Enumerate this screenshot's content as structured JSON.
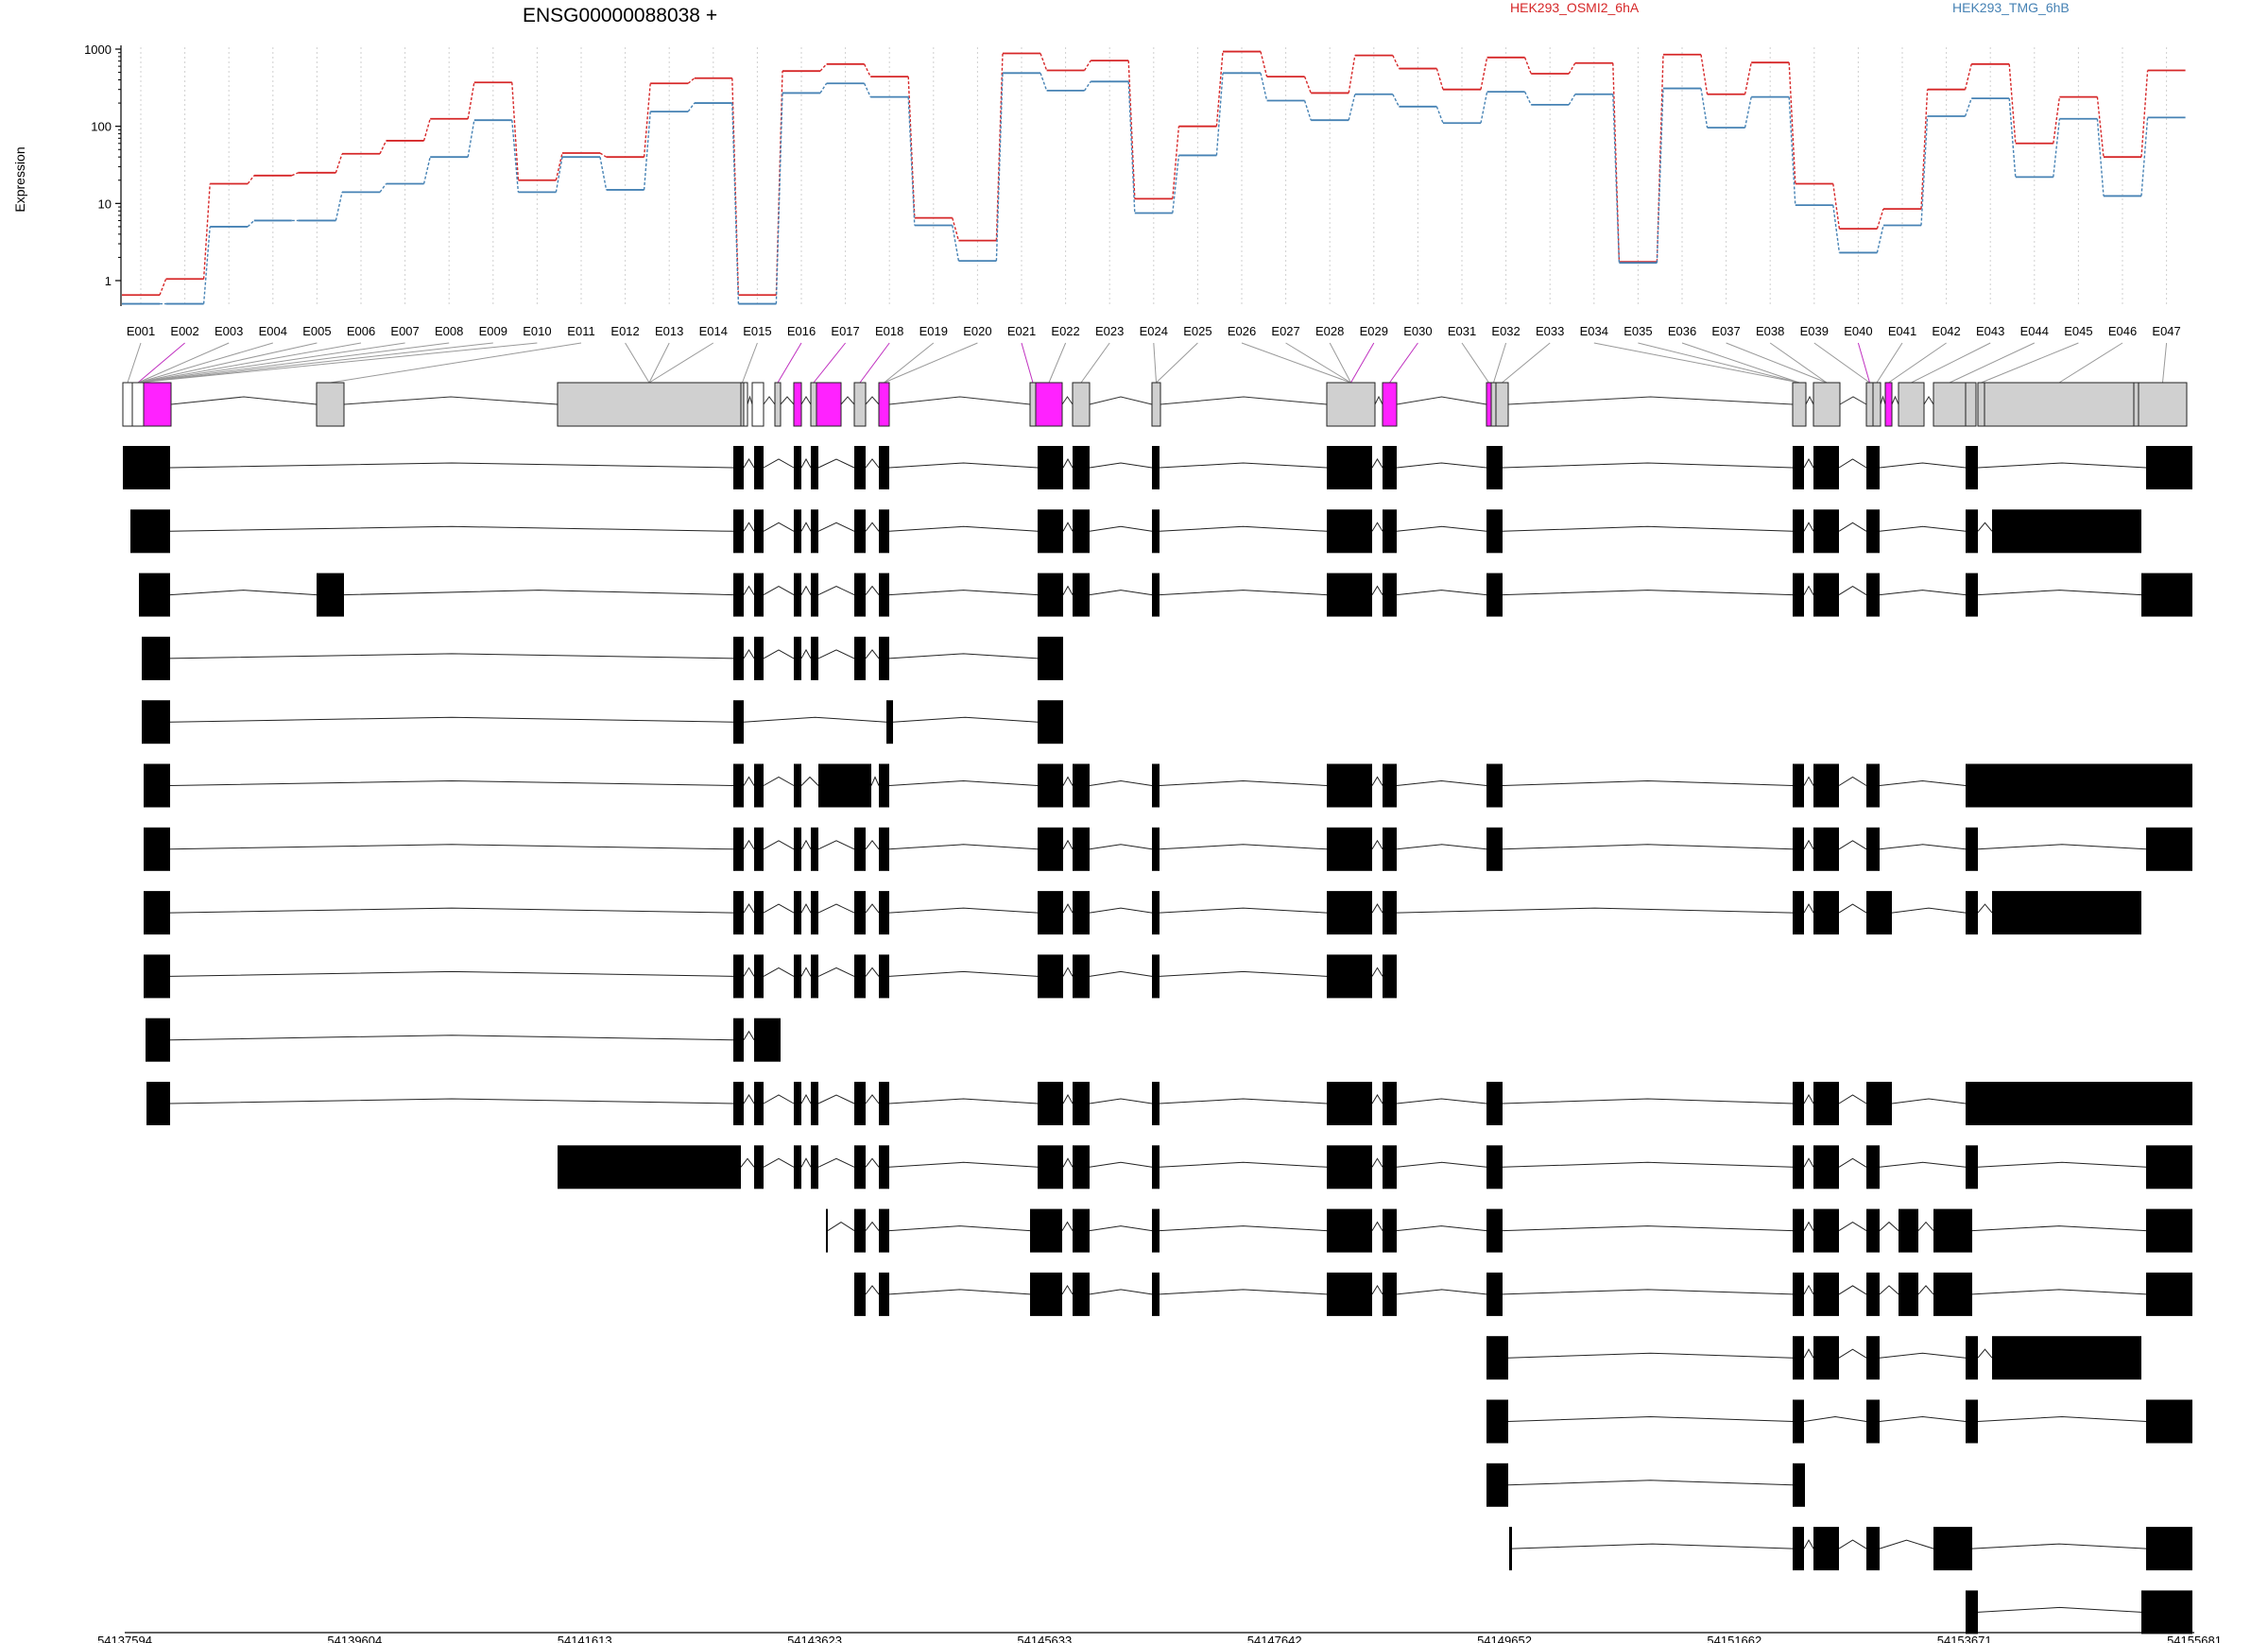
{
  "chart_data": {
    "type": "line",
    "title": "ENSG00000088038 +",
    "ylabel": "Expression",
    "y_scale": "log",
    "ylim": [
      0.5,
      1000
    ],
    "yticks": [
      "1000",
      "100",
      "10",
      "1"
    ],
    "grid": "vertical dotted lines at exon centers",
    "legend_position": "top",
    "categories": [
      "E001",
      "E002",
      "E003",
      "E004",
      "E005",
      "E006",
      "E007",
      "E008",
      "E009",
      "E010",
      "E011",
      "E012",
      "E013",
      "E014",
      "E015",
      "E016",
      "E017",
      "E018",
      "E019",
      "E020",
      "E021",
      "E022",
      "E023",
      "E024",
      "E025",
      "E026",
      "E027",
      "E028",
      "E029",
      "E030",
      "E031",
      "E032",
      "E033",
      "E034",
      "E035",
      "E036",
      "E037",
      "E038",
      "E039",
      "E040",
      "E041",
      "E042",
      "E043",
      "E044",
      "E045",
      "E046",
      "E047"
    ],
    "series": [
      {
        "name": "HEK293_OSMI2_6hA",
        "color": "#d62728",
        "values": [
          0.65,
          1.05,
          18,
          23,
          25,
          44,
          65,
          125,
          370,
          20,
          45,
          40,
          360,
          420,
          0.65,
          520,
          640,
          440,
          6.5,
          3.3,
          880,
          530,
          710,
          11.5,
          100,
          930,
          440,
          270,
          830,
          560,
          300,
          780,
          480,
          660,
          1.75,
          850,
          260,
          670,
          18,
          4.7,
          8.5,
          300,
          640,
          60,
          240,
          40,
          530
        ]
      },
      {
        "name": "HEK293_TMG_6hB",
        "color": "#4682b4",
        "values": [
          0.5,
          0.5,
          5,
          6,
          6,
          14,
          18,
          40,
          120,
          14,
          40,
          15,
          155,
          200,
          0.5,
          270,
          360,
          240,
          5.2,
          1.8,
          490,
          290,
          380,
          7.5,
          42,
          490,
          215,
          120,
          260,
          180,
          110,
          280,
          190,
          260,
          1.7,
          310,
          96,
          240,
          9.5,
          2.3,
          5.2,
          135,
          230,
          22,
          125,
          12.5,
          130
        ]
      }
    ],
    "exon_highlight": [
      "E002",
      "E016",
      "E017",
      "E018",
      "E021",
      "E029",
      "E030",
      "E040"
    ],
    "coordinates": [
      "54137594",
      "54139604",
      "54141613",
      "54143623",
      "54145633",
      "54147642",
      "54149652",
      "54151662",
      "54153671",
      "54155681"
    ],
    "transcripts_count": 19
  }
}
